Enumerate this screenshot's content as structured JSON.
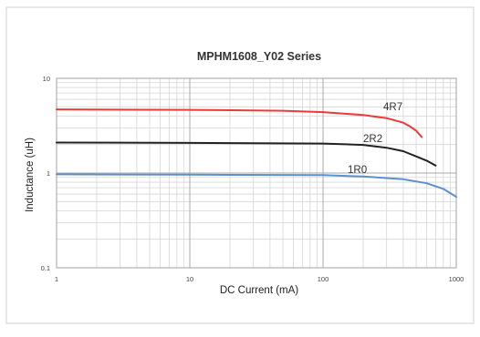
{
  "chart_data": {
    "type": "line",
    "title": "MPHM1608_Y02 Series",
    "xlabel": "DC Current (mA)",
    "ylabel": "Inductance (uH)",
    "xscale": "log",
    "yscale": "log",
    "xlim": [
      1,
      1000
    ],
    "ylim": [
      0.1,
      10
    ],
    "x_ticks": [
      {
        "value": 1,
        "label": "1"
      },
      {
        "value": 10,
        "label": "10"
      },
      {
        "value": 100,
        "label": "100"
      },
      {
        "value": 1000,
        "label": "1000"
      }
    ],
    "y_ticks": [
      {
        "value": 0.1,
        "label": "0.1"
      },
      {
        "value": 1,
        "label": "1"
      },
      {
        "value": 10,
        "label": "10"
      }
    ],
    "grid": true,
    "legend": "inline labels",
    "series": [
      {
        "name": "4R7",
        "color": "#ee3a3a",
        "x": [
          1,
          10,
          50,
          100,
          200,
          300,
          400,
          450,
          500,
          550
        ],
        "y": [
          4.7,
          4.65,
          4.55,
          4.4,
          4.1,
          3.8,
          3.4,
          3.1,
          2.8,
          2.4
        ]
      },
      {
        "name": "2R2",
        "color": "#222222",
        "x": [
          1,
          10,
          100,
          200,
          300,
          400,
          500,
          600,
          700
        ],
        "y": [
          2.1,
          2.08,
          2.05,
          1.98,
          1.85,
          1.7,
          1.5,
          1.35,
          1.2
        ]
      },
      {
        "name": "1R0",
        "color": "#5b8fd0",
        "x": [
          1,
          10,
          100,
          200,
          400,
          600,
          800,
          1000
        ],
        "y": [
          0.97,
          0.96,
          0.95,
          0.92,
          0.86,
          0.78,
          0.68,
          0.56
        ]
      }
    ]
  }
}
